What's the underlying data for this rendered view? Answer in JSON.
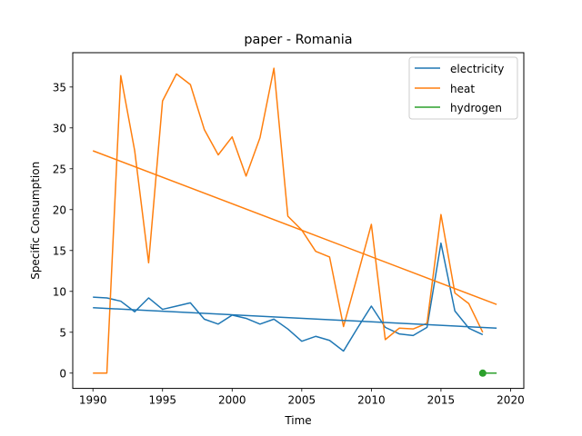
{
  "chart_data": {
    "type": "line",
    "title": "paper - Romania",
    "xlabel": "Time",
    "ylabel": "Specific Consumption",
    "xlim": [
      1988.55,
      2020.95
    ],
    "ylim": [
      -1.87,
      39.2
    ],
    "xticks": [
      1990,
      1995,
      2000,
      2005,
      2010,
      2015,
      2020
    ],
    "yticks": [
      0,
      5,
      10,
      15,
      20,
      25,
      30,
      35
    ],
    "legend_position": "top-right",
    "series": [
      {
        "name": "electricity",
        "color": "#1f77b4",
        "x": [
          1990,
          1991,
          1992,
          1993,
          1994,
          1995,
          1996,
          1997,
          1998,
          1999,
          2000,
          2001,
          2002,
          2003,
          2004,
          2005,
          2006,
          2007,
          2008,
          2009,
          2010,
          2011,
          2012,
          2013,
          2014,
          2015,
          2016,
          2017,
          2018
        ],
        "y": [
          9.3,
          9.2,
          8.8,
          7.5,
          9.2,
          7.8,
          8.2,
          8.6,
          6.6,
          6.0,
          7.1,
          6.7,
          6.0,
          6.6,
          5.4,
          3.9,
          4.5,
          4.0,
          2.7,
          5.5,
          8.2,
          5.6,
          4.8,
          4.6,
          5.6,
          15.9,
          7.6,
          5.5,
          4.7
        ]
      },
      {
        "name": "heat",
        "color": "#ff7f0e",
        "x": [
          1990,
          1991,
          1992,
          1993,
          1994,
          1995,
          1996,
          1997,
          1998,
          1999,
          2000,
          2001,
          2002,
          2003,
          2004,
          2005,
          2006,
          2007,
          2008,
          2009,
          2010,
          2011,
          2012,
          2013,
          2014,
          2015,
          2016,
          2017,
          2018
        ],
        "y": [
          0.0,
          0.0,
          36.4,
          27.2,
          13.5,
          33.3,
          36.6,
          35.3,
          29.8,
          26.7,
          28.9,
          24.1,
          28.8,
          37.3,
          19.2,
          17.5,
          14.9,
          14.2,
          5.7,
          11.9,
          18.2,
          4.1,
          5.5,
          5.4,
          6.1,
          19.4,
          9.8,
          8.5,
          5.0
        ]
      },
      {
        "name": "hydrogen",
        "color": "#2ca02c",
        "x": [
          2018
        ],
        "y": [
          0.0
        ]
      }
    ],
    "trend_lines": [
      {
        "name": "electricity trend",
        "color": "#1f77b4",
        "x": [
          1990,
          2019
        ],
        "y": [
          8.0,
          5.5
        ]
      },
      {
        "name": "heat trend",
        "color": "#ff7f0e",
        "x": [
          1990,
          2019
        ],
        "y": [
          27.2,
          8.4
        ]
      },
      {
        "name": "hydrogen trend",
        "color": "#2ca02c",
        "x": [
          2018,
          2019
        ],
        "y": [
          0.0,
          0.0
        ]
      }
    ],
    "markers": [
      {
        "name": "hydrogen point",
        "color": "#2ca02c",
        "x": 2018,
        "y": 0.0
      }
    ]
  }
}
